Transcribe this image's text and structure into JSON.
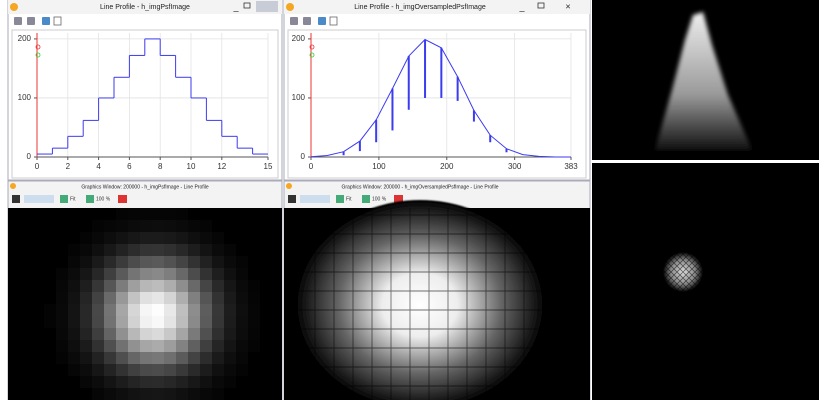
{
  "windows": [
    {
      "title": "Line Profile - h_imgPsfImage"
    },
    {
      "title": "Line Profile - h_imgOversampledPsfImage"
    },
    {
      "title": "Graphics Window: 200000 - h_imgPsfImage - Line Profile",
      "fit": "Fit",
      "zoom": "100 %"
    },
    {
      "title": "Graphics Window: 200000 - h_imgOversampledPsfImage - Line Profile",
      "fit": "Fit",
      "zoom": "100 %"
    }
  ],
  "chart_data": [
    {
      "type": "step",
      "color": "#3b3bf0",
      "x": [
        0,
        1,
        2,
        3,
        4,
        5,
        6,
        7,
        8,
        9,
        10,
        11,
        12,
        13,
        14
      ],
      "values": [
        5,
        15,
        35,
        62,
        100,
        135,
        172,
        200,
        172,
        135,
        100,
        62,
        35,
        15,
        5
      ],
      "xlim": [
        0,
        15
      ],
      "xticks": [
        0,
        2,
        4,
        6,
        8,
        10,
        12,
        15
      ],
      "ylim": [
        0,
        210
      ],
      "yticks": [
        0,
        100,
        200
      ],
      "grid": true
    },
    {
      "type": "line",
      "color": "#3b3bf0",
      "x": [
        0,
        24,
        48,
        72,
        96,
        120,
        144,
        168,
        192,
        216,
        240,
        264,
        288,
        312,
        336,
        360,
        383
      ],
      "values": [
        0.5,
        2.5,
        9,
        27,
        63,
        116,
        171,
        199,
        185,
        136,
        79,
        37,
        14,
        4,
        1,
        0,
        0
      ],
      "sticks": {
        "x": [
          48,
          72,
          96,
          120,
          144,
          168,
          192,
          216,
          240,
          264,
          288
        ],
        "top": [
          9,
          27,
          63,
          116,
          171,
          199,
          185,
          136,
          79,
          37,
          14
        ],
        "bottom": [
          3,
          10,
          25,
          45,
          80,
          100,
          100,
          95,
          60,
          25,
          8
        ]
      },
      "xlim": [
        0,
        383
      ],
      "xticks": [
        0,
        100,
        200,
        300,
        383
      ],
      "ylim": [
        0,
        210
      ],
      "yticks": [
        0,
        100,
        200
      ],
      "grid": true
    }
  ]
}
